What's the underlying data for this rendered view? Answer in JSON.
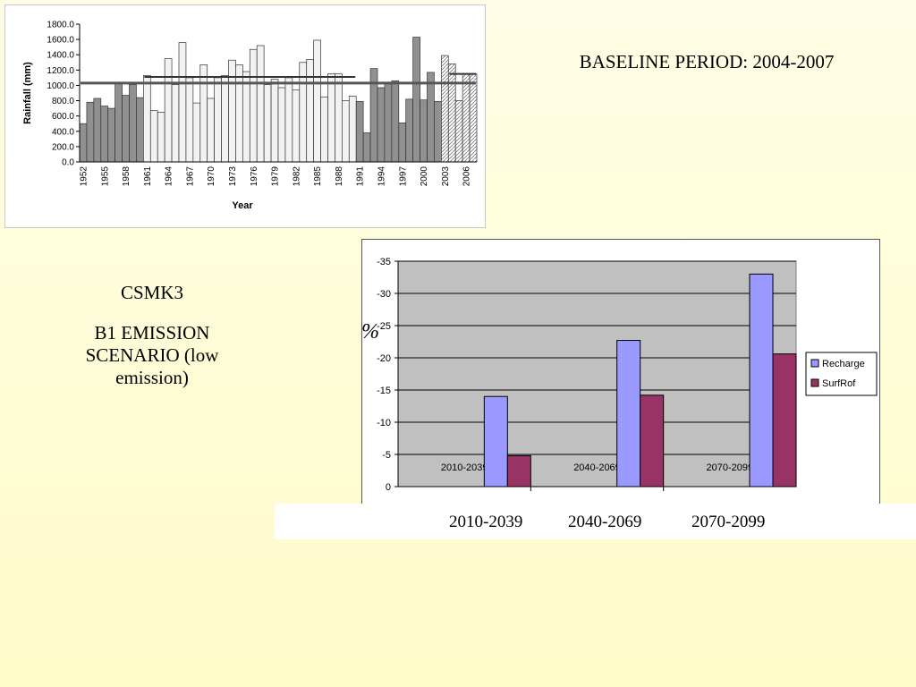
{
  "slide": {
    "baseline_title": "BASELINE PERIOD: 2004-2007",
    "model_label": "CSMK3",
    "scenario_label": "B1 EMISSION SCENARIO (low emission)",
    "percent_label": "%",
    "bottom_periods": [
      "2010-2039",
      "2040-2069",
      "2070-2099"
    ]
  },
  "chart_data": [
    {
      "type": "bar",
      "xlabel": "Year",
      "ylabel": "Rainfall (mm)",
      "ylim": [
        0,
        1800
      ],
      "yticks": [
        "0.0",
        "200.0",
        "400.0",
        "600.0",
        "800.0",
        "1000.0",
        "1200.0",
        "1400.0",
        "1600.0",
        "1800.0"
      ],
      "x": [
        1952,
        1953,
        1954,
        1955,
        1956,
        1957,
        1958,
        1959,
        1960,
        1961,
        1962,
        1963,
        1964,
        1965,
        1966,
        1967,
        1968,
        1969,
        1970,
        1971,
        1972,
        1973,
        1974,
        1975,
        1976,
        1977,
        1978,
        1979,
        1980,
        1981,
        1982,
        1983,
        1984,
        1985,
        1986,
        1987,
        1988,
        1989,
        1990,
        1991,
        1992,
        1993,
        1994,
        1995,
        1996,
        1997,
        1998,
        1999,
        2000,
        2001,
        2002,
        2003,
        2004,
        2005,
        2006,
        2007
      ],
      "xtick_labels": [
        "1952",
        "1955",
        "1958",
        "1961",
        "1964",
        "1967",
        "1970",
        "1973",
        "1976",
        "1979",
        "1982",
        "1985",
        "1988",
        "1991",
        "1994",
        "1997",
        "2000",
        "2003",
        "2006"
      ],
      "values": [
        500,
        780,
        830,
        730,
        700,
        1030,
        870,
        1010,
        840,
        1130,
        670,
        650,
        1350,
        1010,
        1560,
        1100,
        770,
        1270,
        830,
        1100,
        1130,
        1330,
        1270,
        1180,
        1470,
        1520,
        1010,
        1080,
        970,
        1100,
        940,
        1300,
        1340,
        1590,
        850,
        1150,
        1150,
        800,
        860,
        790,
        380,
        1220,
        970,
        1020,
        1060,
        510,
        820,
        1630,
        810,
        1170,
        790,
        1390,
        1280,
        800,
        1150,
        1150
      ],
      "shading": [
        "dark",
        "dark",
        "dark",
        "dark",
        "dark",
        "dark",
        "dark",
        "dark",
        "dark",
        "light",
        "light",
        "light",
        "light",
        "light",
        "light",
        "light",
        "light",
        "light",
        "light",
        "light",
        "light",
        "light",
        "light",
        "light",
        "light",
        "light",
        "light",
        "light",
        "light",
        "light",
        "light",
        "light",
        "light",
        "light",
        "light",
        "light",
        "light",
        "light",
        "light",
        "dark",
        "dark",
        "dark",
        "dark",
        "dark",
        "dark",
        "dark",
        "dark",
        "dark",
        "dark",
        "dark",
        "dark",
        "hatch",
        "hatch",
        "hatch",
        "hatch",
        "hatch"
      ],
      "reference_lines": [
        {
          "from": 1952,
          "to": 2007,
          "value": 1030
        },
        {
          "from": 1961,
          "to": 1990,
          "value": 1110
        },
        {
          "from": 2004,
          "to": 2007,
          "value": 1150
        }
      ]
    },
    {
      "type": "bar",
      "categories": [
        "2010-2039",
        "2040-2069",
        "2070-2099"
      ],
      "ylim": [
        0,
        -35
      ],
      "yticks": [
        "0",
        "-5",
        "-10",
        "-15",
        "-20",
        "-25",
        "-30",
        "-35"
      ],
      "series": [
        {
          "name": "Recharge",
          "values": [
            -14,
            -22.7,
            -33
          ],
          "color": "#9999ff"
        },
        {
          "name": "SurfRof",
          "values": [
            -4.8,
            -14.2,
            -20.6
          ],
          "color": "#993366"
        }
      ],
      "legend": "right",
      "plot_bg": "#c0c0c0"
    }
  ]
}
